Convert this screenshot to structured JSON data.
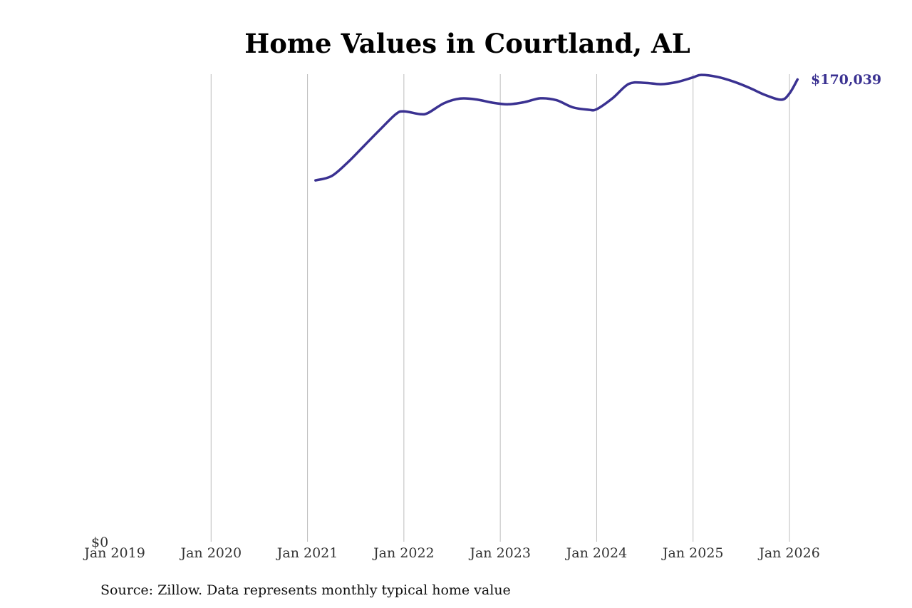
{
  "chart_data": {
    "type": "line",
    "title": "Home Values in Courtland, AL",
    "xlabel": "",
    "ylabel": "",
    "x_tick_labels": [
      "Jan 2019",
      "Jan 2020",
      "Jan 2021",
      "Jan 2022",
      "Jan 2023",
      "Jan 2024",
      "Jan 2025",
      "Jan 2026"
    ],
    "y_tick_labels": [
      "$0"
    ],
    "xlim": [
      "2019-01",
      "2026-02"
    ],
    "ylim": [
      0,
      172000
    ],
    "grid": "vertical lines at x ticks",
    "line_color": "#3a3191",
    "end_label": "$170,039",
    "series": [
      {
        "x": [
          "2021-02",
          "2021-04",
          "2021-06",
          "2021-08",
          "2021-10",
          "2021-12",
          "2022-01",
          "2022-03",
          "2022-04",
          "2022-06",
          "2022-08",
          "2022-10",
          "2022-12",
          "2023-02",
          "2023-04",
          "2023-06",
          "2023-08",
          "2023-10",
          "2023-12",
          "2024-01",
          "2024-03",
          "2024-05",
          "2024-07",
          "2024-09",
          "2024-11",
          "2025-01",
          "2025-02",
          "2025-04",
          "2025-06",
          "2025-08",
          "2025-10",
          "2025-12",
          "2026-01",
          "2026-02"
        ],
        "values": [
          132900,
          134500,
          139500,
          145500,
          151500,
          157300,
          158300,
          157300,
          157700,
          161300,
          163000,
          162700,
          161500,
          160900,
          161700,
          163100,
          162400,
          159800,
          158900,
          159100,
          163200,
          168400,
          168800,
          168300,
          169100,
          170800,
          171700,
          171000,
          169300,
          167000,
          164300,
          162600,
          164900,
          170039
        ]
      }
    ]
  },
  "source": "Source: Zillow. Data represents monthly typical home value"
}
